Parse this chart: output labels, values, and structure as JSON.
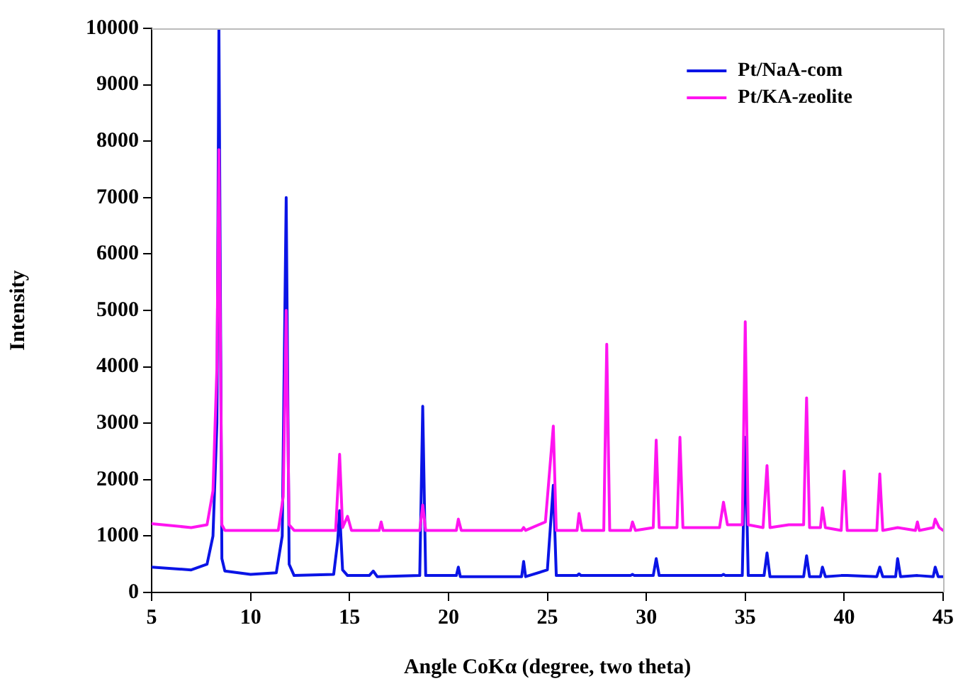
{
  "chart_data": {
    "type": "line",
    "xlabel": "Angle CoKα (degree, two theta)",
    "ylabel": "Intensity",
    "xlim": [
      5,
      45
    ],
    "xticks": [
      5,
      10,
      15,
      20,
      25,
      30,
      35,
      40,
      45
    ],
    "ylim": [
      0,
      10000
    ],
    "yticks": [
      0,
      1000,
      2000,
      3000,
      4000,
      5000,
      6000,
      7000,
      8000,
      9000,
      10000
    ],
    "grid": false,
    "legend": "top right",
    "marker": "none",
    "line_style": "solid",
    "series": [
      {
        "name": "Pt/NaA-com",
        "color": "#0a14e6",
        "x": [
          5,
          7,
          7.8,
          8.1,
          8.3,
          8.4,
          8.55,
          8.7,
          10,
          11.3,
          11.6,
          11.8,
          11.95,
          12.2,
          14.2,
          14.4,
          14.5,
          14.65,
          14.9,
          16,
          16.2,
          16.4,
          18.55,
          18.7,
          18.85,
          20.4,
          20.5,
          20.6,
          23.7,
          23.8,
          23.9,
          25,
          25.3,
          25.45,
          26.5,
          26.6,
          26.7,
          27.85,
          28,
          28.15,
          29.2,
          29.3,
          29.4,
          30.35,
          30.5,
          30.65,
          31.55,
          31.7,
          31.85,
          33.8,
          33.9,
          34,
          34.85,
          35,
          35.15,
          35.95,
          36.1,
          36.25,
          37.95,
          38.1,
          38.25,
          38.8,
          38.9,
          39.05,
          39.85,
          40,
          40.15,
          41.65,
          41.8,
          41.95,
          42.6,
          42.7,
          42.85,
          43.7,
          44.5,
          44.6,
          44.75,
          45
        ],
        "values": [
          450,
          400,
          500,
          1000,
          3000,
          10000,
          600,
          380,
          320,
          350,
          1000,
          7000,
          500,
          300,
          320,
          900,
          1450,
          400,
          300,
          300,
          380,
          280,
          300,
          3300,
          300,
          300,
          450,
          280,
          280,
          550,
          280,
          400,
          1900,
          300,
          300,
          330,
          300,
          300,
          null,
          300,
          300,
          320,
          300,
          300,
          600,
          300,
          300,
          null,
          300,
          300,
          320,
          300,
          300,
          2750,
          300,
          300,
          700,
          280,
          280,
          650,
          280,
          280,
          450,
          280,
          300,
          null,
          300,
          280,
          450,
          280,
          280,
          600,
          280,
          300,
          280,
          450,
          280,
          280
        ]
      },
      {
        "name": "Pt/KA-zeolite",
        "color": "#ff14f0",
        "x": [
          5,
          7,
          7.8,
          8.1,
          8.3,
          8.4,
          8.55,
          8.7,
          11.4,
          11.65,
          11.8,
          11.95,
          12.2,
          14.3,
          14.5,
          14.65,
          14.9,
          15.1,
          16.5,
          16.6,
          16.7,
          18.55,
          18.7,
          18.85,
          20.4,
          20.5,
          20.65,
          23.7,
          23.8,
          23.9,
          24.9,
          25.3,
          25.45,
          26.5,
          26.6,
          26.75,
          27.85,
          28,
          28.15,
          29.2,
          29.3,
          29.45,
          30.35,
          30.5,
          30.65,
          31.55,
          31.7,
          31.85,
          33.7,
          33.9,
          34.1,
          34.85,
          35,
          35.15,
          35.9,
          36.1,
          36.25,
          37.2,
          37.95,
          38.1,
          38.25,
          38.8,
          38.9,
          39.05,
          39.85,
          40,
          40.15,
          41.65,
          41.8,
          41.95,
          42.7,
          43.6,
          43.7,
          43.8,
          44.5,
          44.6,
          44.8,
          45
        ],
        "values": [
          1220,
          1150,
          1200,
          1800,
          4000,
          7850,
          1200,
          1100,
          1100,
          1700,
          5000,
          1200,
          1100,
          1100,
          2450,
          1150,
          1350,
          1100,
          1100,
          1250,
          1100,
          1100,
          1550,
          1100,
          1100,
          1300,
          1100,
          1100,
          1150,
          1100,
          1250,
          2950,
          1100,
          1100,
          1400,
          1100,
          1100,
          4400,
          1100,
          1100,
          1250,
          1100,
          1150,
          2700,
          1150,
          1150,
          2750,
          1150,
          1150,
          1600,
          1200,
          1200,
          4800,
          1200,
          1150,
          2250,
          1150,
          1200,
          1200,
          3450,
          1150,
          1150,
          1500,
          1150,
          1100,
          2150,
          1100,
          1100,
          2100,
          1100,
          1150,
          1100,
          1250,
          1100,
          1150,
          1300,
          1150,
          1100
        ]
      }
    ]
  }
}
